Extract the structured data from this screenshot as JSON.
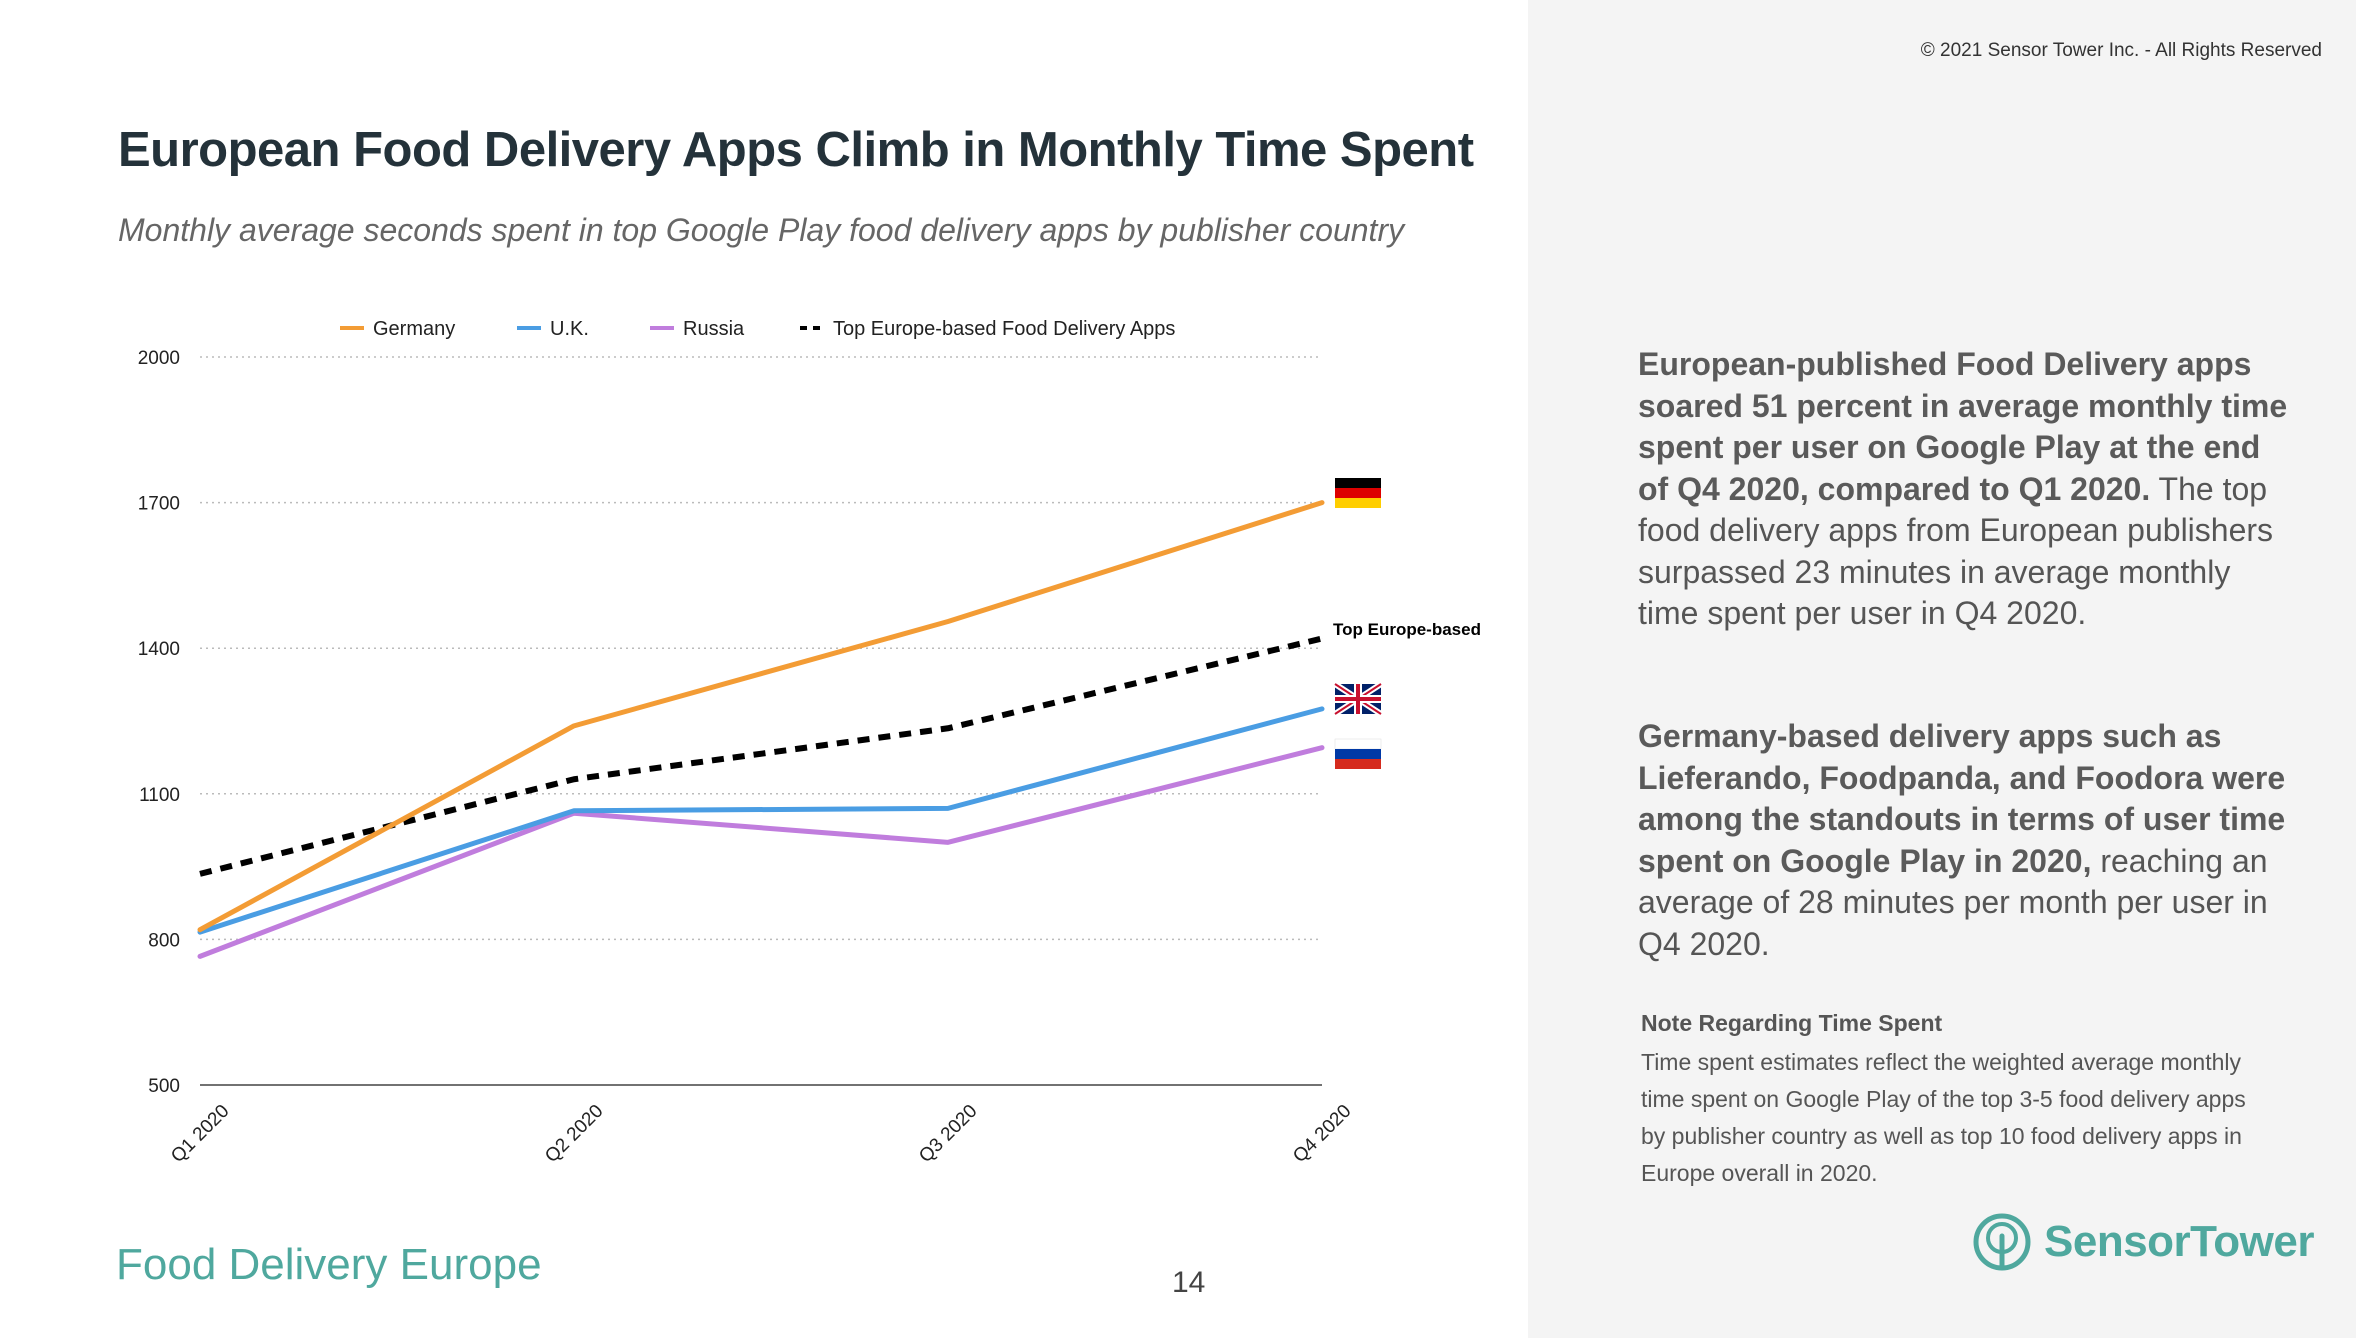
{
  "copyright": "© 2021 Sensor Tower Inc. - All Rights Reserved",
  "title": "European Food Delivery Apps Climb in Monthly Time Spent",
  "subtitle": "Monthly average seconds spent in top Google Play food delivery apps by publisher country",
  "footer_title": "Food Delivery Europe",
  "page_number": "14",
  "colors": {
    "germany": "#f39c35",
    "uk": "#4a9de3",
    "russia": "#c07ddd",
    "europe": "#000000",
    "brand": "#4fa89e"
  },
  "chart_data": {
    "type": "line",
    "categories": [
      "Q1 2020",
      "Q2 2020",
      "Q3 2020",
      "Q4 2020"
    ],
    "ylim": [
      500,
      2000
    ],
    "yticks": [
      "2000",
      "1700",
      "1400",
      "1100",
      "800",
      "500"
    ],
    "series": [
      {
        "name": "Germany",
        "values": [
          820,
          1240,
          1455,
          1700
        ]
      },
      {
        "name": "U.K.",
        "values": [
          815,
          1065,
          1070,
          1275
        ]
      },
      {
        "name": "Russia",
        "values": [
          765,
          1060,
          1000,
          1195
        ]
      },
      {
        "name": "Top Europe-based Food Delivery Apps",
        "values": [
          935,
          1130,
          1235,
          1420
        ]
      }
    ],
    "annotation": "Top Europe-based",
    "grid": true,
    "legend_position": "top"
  },
  "paragraph1": {
    "bold": "European-published Food Delivery apps soared 51 percent in average monthly time spent per user on Google Play at the end of Q4 2020, compared to Q1 2020.",
    "text": " The top food delivery apps from European publishers surpassed 23 minutes in average monthly time spent per user in Q4 2020."
  },
  "paragraph2": {
    "bold": "Germany-based delivery apps such as Lieferando, Foodpanda, and Foodora were among the standouts in terms of user time spent on Google Play in 2020,",
    "text": " reaching an average of 28 minutes per month per user in Q4 2020."
  },
  "note": {
    "heading": "Note Regarding Time Spent",
    "body": "Time spent estimates reflect the weighted average monthly time spent on Google Play of the top 3-5 food delivery apps by publisher country as well as top 10 food delivery apps in Europe overall in 2020."
  },
  "logo": {
    "text": "SensorTower",
    "icon": "sensor-tower-logo-icon"
  }
}
